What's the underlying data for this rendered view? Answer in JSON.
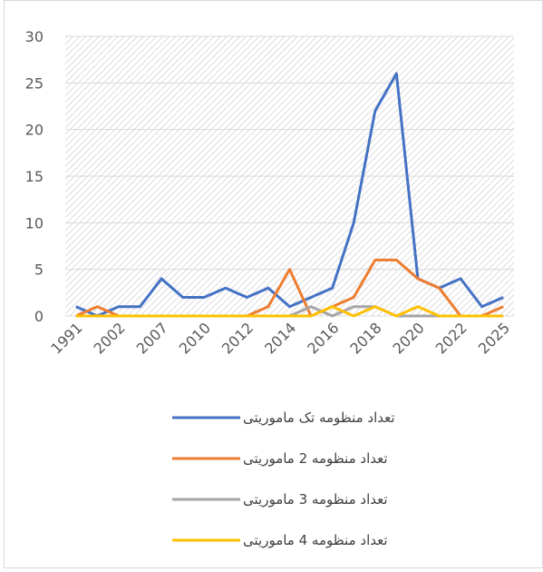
{
  "chart_data": {
    "type": "line",
    "categories": [
      "1991",
      null,
      "2002",
      null,
      "2007",
      null,
      "2010",
      null,
      "2012",
      null,
      "2014",
      null,
      "2016",
      null,
      "2018",
      null,
      "2020",
      null,
      "2022",
      null,
      "2025"
    ],
    "series": [
      {
        "name": "تعداد منظومه تک ماموریتی",
        "color": "#4472c4",
        "values": [
          1,
          0,
          1,
          1,
          4,
          2,
          2,
          3,
          2,
          3,
          1,
          2,
          3,
          10,
          22,
          26,
          4,
          3,
          4,
          1,
          2
        ]
      },
      {
        "name": "تعداد منظومه 2 ماموریتی",
        "color": "#ed7d31",
        "values": [
          0,
          1,
          0,
          0,
          0,
          0,
          0,
          0,
          0,
          1,
          5,
          0,
          1,
          2,
          6,
          6,
          4,
          3,
          0,
          0,
          1
        ]
      },
      {
        "name": "تعداد منظومه 3 ماموریتی",
        "color": "#a5a5a5",
        "values": [
          0,
          0,
          0,
          0,
          0,
          0,
          0,
          0,
          0,
          0,
          0,
          1,
          0,
          1,
          1,
          0,
          0,
          0,
          0,
          0,
          0
        ]
      },
      {
        "name": "تعداد منظومه 4 ماموریتی",
        "color": "#ffc000",
        "values": [
          0,
          0,
          0,
          0,
          0,
          0,
          0,
          0,
          0,
          0,
          0,
          0,
          1,
          0,
          1,
          0,
          1,
          0,
          0,
          0,
          0
        ]
      }
    ],
    "ylim": [
      0,
      30
    ],
    "yticks": [
      0,
      5,
      10,
      15,
      20,
      25,
      30
    ],
    "grid": true,
    "legend": "bottom"
  }
}
